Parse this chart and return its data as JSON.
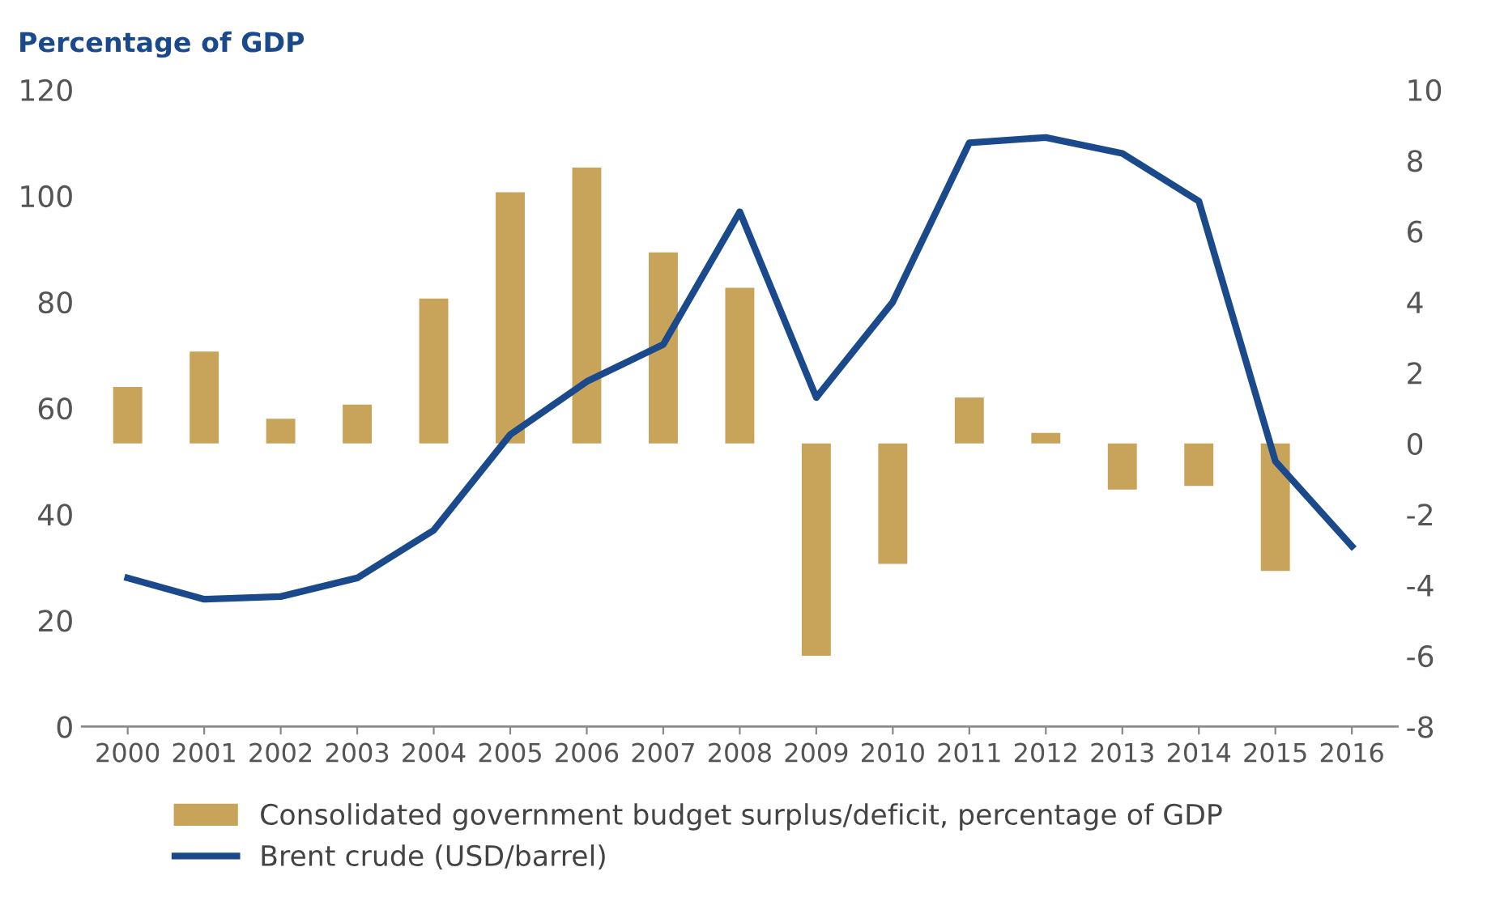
{
  "chart_data": {
    "type": "bar",
    "ylabel": "Percentage of GDP",
    "categories": [
      "2000",
      "2001",
      "2002",
      "2003",
      "2004",
      "2005",
      "2006",
      "2007",
      "2008",
      "2009",
      "2010",
      "2011",
      "2012",
      "2013",
      "2014",
      "2015",
      "2016"
    ],
    "series": [
      {
        "name": "Consolidated government budget surplus/deficit, percentage of GDP",
        "axis": "y2",
        "color": "#c8a45a",
        "values": [
          1.6,
          2.6,
          0.7,
          1.1,
          4.1,
          7.1,
          7.8,
          5.4,
          4.4,
          -6.0,
          -3.4,
          1.3,
          0.3,
          -1.3,
          -1.2,
          -3.6,
          null
        ]
      },
      {
        "name": "Brent crude (USD/barrel)",
        "type": "line",
        "color": "#1a4a8c",
        "values": [
          28,
          24,
          24.5,
          28,
          37,
          55,
          65,
          72,
          97,
          62,
          80,
          110,
          111,
          108,
          99,
          50,
          34
        ]
      }
    ],
    "ylim": [
      0,
      120
    ],
    "yticks": [
      0,
      20,
      40,
      60,
      80,
      100,
      120
    ],
    "y2lim": [
      -8,
      10
    ],
    "y2ticks": [
      -8,
      -6,
      -4,
      -2,
      0,
      2,
      4,
      6,
      8,
      10
    ],
    "grid": false,
    "legend": "bottom",
    "marker": "none",
    "line_style": "solid"
  }
}
